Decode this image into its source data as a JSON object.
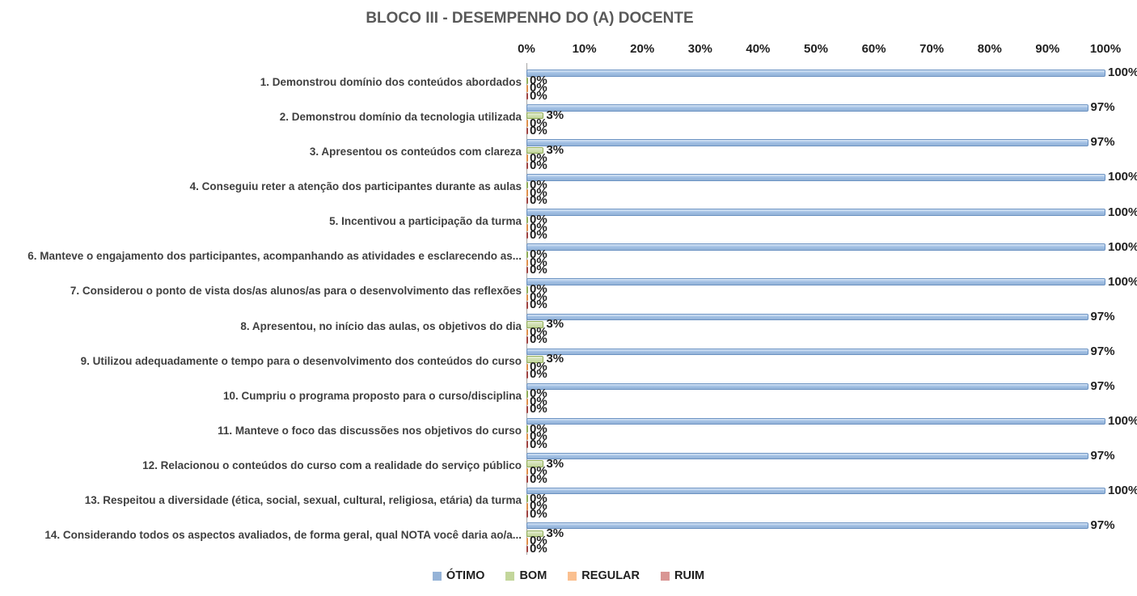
{
  "chart_data": {
    "type": "bar",
    "orientation": "horizontal",
    "title": "BLOCO III - DESEMPENHO DO (A) DOCENTE",
    "categories": [
      "1. Demonstrou domínio dos conteúdos abordados",
      "2. Demonstrou domínio da tecnologia utilizada",
      "3. Apresentou os conteúdos com clareza",
      "4. Conseguiu reter a atenção dos participantes durante as aulas",
      "5. Incentivou a participação da turma",
      "6. Manteve o engajamento dos participantes, acompanhando as atividades e esclarecendo as...",
      "7. Considerou o ponto de vista dos/as alunos/as para o desenvolvimento das reflexões",
      "8. Apresentou, no início das aulas, os objetivos do dia",
      "9. Utilizou adequadamente o tempo para o desenvolvimento dos conteúdos do curso",
      "10. Cumpriu o programa proposto para o curso/disciplina",
      "11. Manteve o foco das discussões nos objetivos do curso",
      "12. Relacionou o conteúdos do curso com a realidade do serviço público",
      "13. Respeitou a diversidade (ética, social, sexual, cultural, religiosa, etária) da turma",
      "14. Considerando todos os aspectos avaliados, de forma geral, qual NOTA você daria ao/a..."
    ],
    "series": [
      {
        "name": "ÓTIMO",
        "color": "#95b3d7",
        "values": [
          100,
          97,
          97,
          100,
          100,
          100,
          100,
          97,
          97,
          97,
          100,
          97,
          100,
          97
        ]
      },
      {
        "name": "BOM",
        "color": "#c3d69b",
        "values": [
          0,
          3,
          3,
          0,
          0,
          0,
          0,
          3,
          3,
          0,
          0,
          3,
          0,
          3
        ]
      },
      {
        "name": "REGULAR",
        "color": "#fac090",
        "values": [
          0,
          0,
          0,
          0,
          0,
          0,
          0,
          0,
          0,
          0,
          0,
          0,
          0,
          0
        ]
      },
      {
        "name": "RUIM",
        "color": "#d99694",
        "values": [
          0,
          0,
          0,
          0,
          0,
          0,
          0,
          0,
          0,
          0,
          0,
          0,
          0,
          0
        ]
      }
    ],
    "x_axis": {
      "min": 0,
      "max": 100,
      "ticks": [
        "0%",
        "10%",
        "20%",
        "30%",
        "40%",
        "50%",
        "60%",
        "70%",
        "80%",
        "90%",
        "100%"
      ]
    },
    "data_labels": true,
    "grid": false,
    "legend_position": "bottom"
  }
}
